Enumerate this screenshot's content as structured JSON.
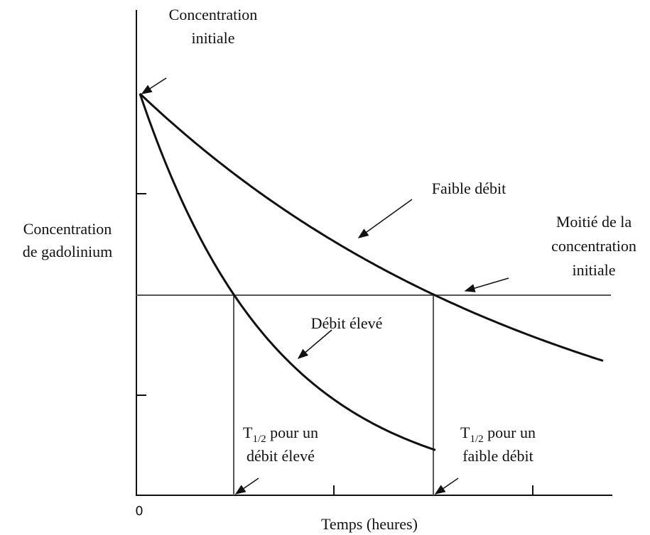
{
  "labels": {
    "initial": [
      "Concentration",
      "initiale"
    ],
    "y_axis": [
      "Concentration",
      "de gadolinium"
    ],
    "low_flow": "Faible débit",
    "half": [
      "Moitié de la",
      "concentration",
      "initiale"
    ],
    "high_flow": "Débit élevé",
    "t_high": {
      "symbol": "T",
      "sub": "1/2",
      "rest": " pour un",
      "line2": "débit élevé"
    },
    "t_low": {
      "symbol": "T",
      "sub": "1/2",
      "rest": " pour un",
      "line2": "faible débit"
    },
    "origin": "0",
    "x_axis": "Temps (heures)"
  }
}
